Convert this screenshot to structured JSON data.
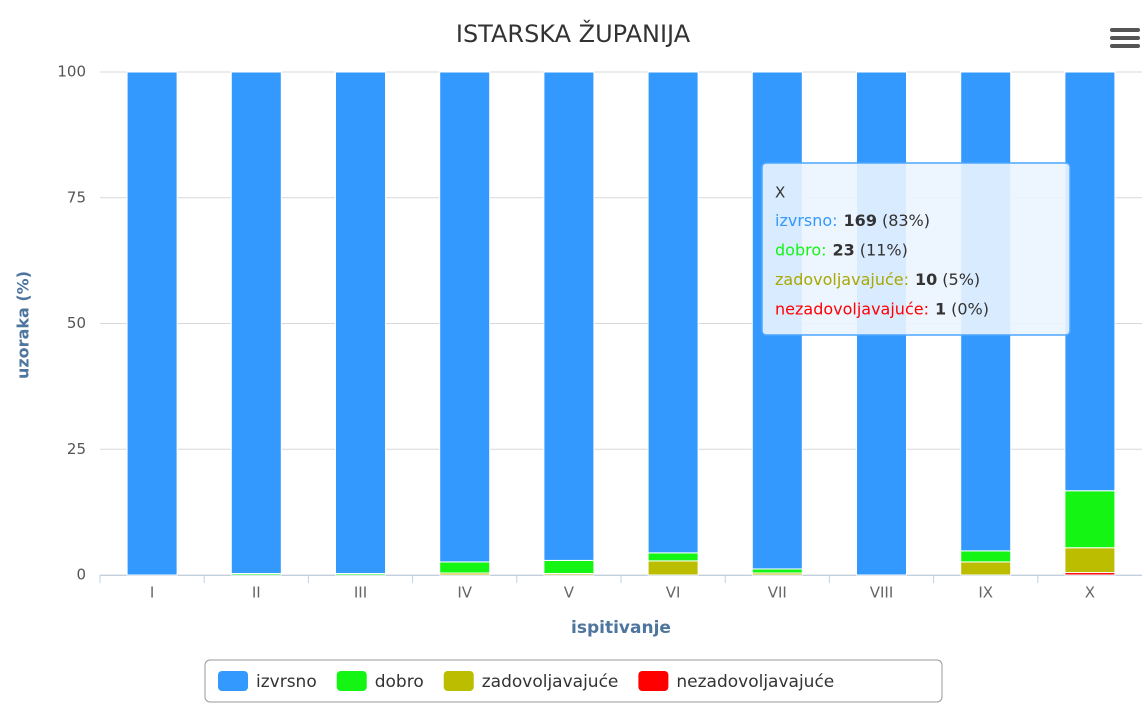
{
  "chart_data": {
    "type": "stacked_bar",
    "title": "ISTARSKA ŽUPANIJA",
    "x_label": "ispitivanje",
    "y_label": "uzoraka (%)",
    "categories": [
      "I",
      "II",
      "III",
      "IV",
      "V",
      "VI",
      "VII",
      "VIII",
      "IX",
      "X"
    ],
    "ylim": [
      0,
      100
    ],
    "yticks": [
      0,
      25,
      50,
      75,
      100
    ],
    "grid": true,
    "legend": "bottom",
    "series": [
      {
        "name": "izvrsno",
        "color": "#3399ff",
        "values": [
          100,
          99.7,
          99.7,
          97.4,
          97.1,
          95.6,
          98.8,
          100,
          95.2,
          83.25
        ]
      },
      {
        "name": "dobro",
        "color": "#14f514",
        "values": [
          0,
          0.3,
          0.3,
          2.2,
          2.6,
          1.6,
          0.8,
          0,
          2.2,
          11.33
        ]
      },
      {
        "name": "zadovoljavajuće",
        "color": "#bdbd00",
        "values": [
          0,
          0,
          0,
          0.4,
          0.3,
          2.8,
          0.4,
          0,
          2.6,
          4.93
        ]
      },
      {
        "name": "nezadovoljavajuće",
        "color": "#ff0000",
        "values": [
          0,
          0,
          0,
          0,
          0,
          0,
          0,
          0,
          0,
          0.49
        ]
      }
    ],
    "tooltip": {
      "rows": [
        {
          "name": "izvrsno:",
          "count": 169,
          "percent": "(83%)"
        },
        {
          "name": "dobro:",
          "count": 23,
          "percent": "(11%)"
        },
        {
          "name": "zadovoljavajuće:",
          "count": 10,
          "percent": "(5%)"
        },
        {
          "name": "nezadovoljavajuće:",
          "count": 1,
          "percent": "(0%)"
        }
      ]
    }
  }
}
